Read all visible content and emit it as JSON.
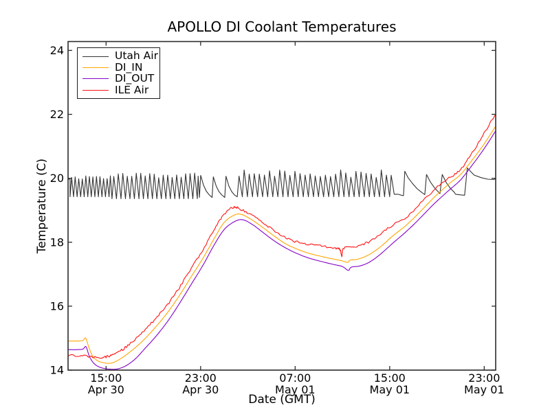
{
  "title": "APOLLO DI Coolant Temperatures",
  "chart_data": {
    "type": "line",
    "title": "APOLLO DI Coolant Temperatures",
    "xlabel": "Date (GMT)",
    "ylabel": "Temperature (C)",
    "x_unit": "hours since Apr 30 00:00 GMT",
    "xlim_hours": [
      11.783,
      47.97
    ],
    "ylim": [
      14,
      24.277
    ],
    "grid": false,
    "legend_position": "upper-left",
    "frame_color": "#2b2b2b",
    "x_ticks": [
      {
        "hour": 15,
        "time": "15:00",
        "date": "Apr 30"
      },
      {
        "hour": 23,
        "time": "23:00",
        "date": "Apr 30"
      },
      {
        "hour": 31,
        "time": "07:00",
        "date": "May 01"
      },
      {
        "hour": 39,
        "time": "15:00",
        "date": "May 01"
      },
      {
        "hour": 47,
        "time": "23:00",
        "date": "May 01"
      }
    ],
    "y_ticks": [
      14,
      16,
      18,
      20,
      22,
      24
    ],
    "series": [
      {
        "name": "Utah Air",
        "color": "#333333",
        "type": "sawtooth",
        "flat_start": [
          [
            11.783,
            19.97
          ],
          [
            11.95,
            19.97
          ]
        ],
        "teeth_segments": [
          {
            "t0": 11.95,
            "t1": 15.5,
            "period": 0.3,
            "lo": 19.42,
            "hi": 20.0,
            "rise_frac": 0.45,
            "peak_jitter": 0.06
          },
          {
            "t0": 15.5,
            "t1": 22.9,
            "period": 0.38,
            "lo": 19.36,
            "hi": 20.06,
            "rise_frac": 0.4,
            "peak_jitter": 0.08
          },
          {
            "t0": 22.9,
            "t1": 26.1,
            "period": 1.07,
            "lo": 19.4,
            "hi": 20.05,
            "rise_frac": 0.1,
            "peak_jitter": 0.05
          },
          {
            "t0": 26.1,
            "t1": 39.37,
            "period": 0.43,
            "lo": 19.42,
            "hi": 20.1,
            "rise_frac": 0.35,
            "peak_jitter": 0.12
          }
        ],
        "tail_points": [
          [
            39.38,
            19.5
          ],
          [
            39.7,
            19.5
          ],
          [
            40.1,
            19.46
          ],
          [
            40.17,
            19.46
          ],
          [
            40.28,
            20.22
          ],
          [
            40.55,
            20.02
          ],
          [
            40.9,
            19.85
          ],
          [
            41.3,
            19.68
          ],
          [
            41.7,
            19.56
          ],
          [
            41.97,
            19.49
          ],
          [
            42.12,
            20.12
          ],
          [
            42.45,
            19.88
          ],
          [
            42.8,
            19.7
          ],
          [
            43.1,
            19.58
          ],
          [
            43.25,
            19.52
          ],
          [
            43.45,
            20.12
          ],
          [
            43.8,
            19.86
          ],
          [
            44.15,
            19.68
          ],
          [
            44.45,
            19.57
          ],
          [
            44.58,
            19.5
          ],
          [
            45.0,
            19.48
          ],
          [
            45.34,
            19.47
          ],
          [
            45.57,
            20.32
          ],
          [
            46.15,
            20.1
          ],
          [
            46.73,
            20.02
          ],
          [
            47.31,
            19.97
          ],
          [
            47.78,
            19.96
          ],
          [
            47.97,
            19.98
          ]
        ]
      },
      {
        "name": "DI_IN",
        "color": "#ffa500",
        "type": "smooth",
        "noise": 0,
        "points": [
          [
            11.78,
            14.91
          ],
          [
            12.6,
            14.91
          ],
          [
            13.05,
            14.93
          ],
          [
            13.28,
            15.0
          ],
          [
            13.55,
            14.7
          ],
          [
            13.85,
            14.45
          ],
          [
            14.25,
            14.3
          ],
          [
            14.8,
            14.23
          ],
          [
            15.45,
            14.22
          ],
          [
            16.2,
            14.35
          ],
          [
            17.2,
            14.62
          ],
          [
            18.2,
            14.95
          ],
          [
            19.2,
            15.35
          ],
          [
            20.2,
            15.8
          ],
          [
            21.2,
            16.33
          ],
          [
            22.2,
            16.92
          ],
          [
            23.2,
            17.5
          ],
          [
            24.2,
            18.15
          ],
          [
            25.0,
            18.62
          ],
          [
            25.85,
            18.85
          ],
          [
            26.45,
            18.87
          ],
          [
            27.25,
            18.72
          ],
          [
            28.2,
            18.48
          ],
          [
            29.2,
            18.2
          ],
          [
            30.2,
            17.95
          ],
          [
            31.2,
            17.78
          ],
          [
            32.2,
            17.65
          ],
          [
            33.4,
            17.54
          ],
          [
            34.3,
            17.47
          ],
          [
            34.95,
            17.42
          ],
          [
            35.45,
            17.37
          ],
          [
            35.65,
            17.44
          ],
          [
            36.3,
            17.47
          ],
          [
            37.2,
            17.6
          ],
          [
            38.2,
            17.85
          ],
          [
            39.2,
            18.18
          ],
          [
            40.3,
            18.5
          ],
          [
            41.3,
            18.85
          ],
          [
            42.7,
            19.38
          ],
          [
            44.0,
            19.82
          ],
          [
            45.0,
            20.12
          ],
          [
            46.0,
            20.58
          ],
          [
            47.0,
            21.08
          ],
          [
            47.95,
            21.62
          ]
        ]
      },
      {
        "name": "DI_OUT",
        "color": "#8400c8",
        "type": "smooth",
        "noise": 0,
        "points": [
          [
            11.78,
            14.64
          ],
          [
            12.6,
            14.64
          ],
          [
            13.05,
            14.66
          ],
          [
            13.3,
            14.73
          ],
          [
            13.6,
            14.42
          ],
          [
            14.0,
            14.2
          ],
          [
            14.55,
            14.08
          ],
          [
            15.3,
            14.03
          ],
          [
            16.0,
            14.04
          ],
          [
            16.7,
            14.14
          ],
          [
            17.5,
            14.36
          ],
          [
            18.3,
            14.68
          ],
          [
            19.2,
            15.05
          ],
          [
            20.2,
            15.52
          ],
          [
            21.2,
            16.08
          ],
          [
            22.2,
            16.68
          ],
          [
            23.2,
            17.28
          ],
          [
            24.2,
            17.95
          ],
          [
            25.05,
            18.42
          ],
          [
            25.95,
            18.66
          ],
          [
            26.6,
            18.7
          ],
          [
            27.4,
            18.55
          ],
          [
            28.3,
            18.3
          ],
          [
            29.2,
            18.05
          ],
          [
            30.2,
            17.82
          ],
          [
            31.2,
            17.64
          ],
          [
            32.2,
            17.5
          ],
          [
            33.4,
            17.38
          ],
          [
            34.3,
            17.3
          ],
          [
            35.0,
            17.24
          ],
          [
            35.5,
            17.12
          ],
          [
            35.75,
            17.22
          ],
          [
            36.5,
            17.26
          ],
          [
            37.3,
            17.38
          ],
          [
            38.2,
            17.62
          ],
          [
            39.2,
            17.95
          ],
          [
            40.3,
            18.3
          ],
          [
            41.3,
            18.65
          ],
          [
            42.7,
            19.18
          ],
          [
            44.0,
            19.62
          ],
          [
            45.0,
            19.95
          ],
          [
            46.0,
            20.42
          ],
          [
            47.0,
            20.93
          ],
          [
            47.95,
            21.47
          ]
        ]
      },
      {
        "name": "ILE Air",
        "color": "#ff1212",
        "type": "smooth",
        "noise": 0.075,
        "points": [
          [
            11.78,
            14.46
          ],
          [
            12.8,
            14.45
          ],
          [
            13.6,
            14.42
          ],
          [
            14.3,
            14.38
          ],
          [
            15.0,
            14.42
          ],
          [
            15.6,
            14.48
          ],
          [
            16.3,
            14.62
          ],
          [
            17.2,
            14.88
          ],
          [
            18.2,
            15.22
          ],
          [
            19.2,
            15.62
          ],
          [
            20.2,
            16.05
          ],
          [
            21.2,
            16.58
          ],
          [
            22.2,
            17.18
          ],
          [
            23.2,
            17.75
          ],
          [
            24.2,
            18.42
          ],
          [
            25.0,
            18.88
          ],
          [
            25.7,
            19.08
          ],
          [
            26.3,
            19.05
          ],
          [
            27.2,
            18.88
          ],
          [
            28.2,
            18.62
          ],
          [
            29.2,
            18.37
          ],
          [
            30.2,
            18.15
          ],
          [
            31.2,
            18.0
          ],
          [
            32.2,
            17.92
          ],
          [
            33.4,
            17.87
          ],
          [
            34.4,
            17.8
          ],
          [
            34.78,
            17.79
          ],
          [
            34.95,
            17.56
          ],
          [
            35.12,
            17.82
          ],
          [
            36.2,
            17.88
          ],
          [
            37.2,
            18.0
          ],
          [
            38.2,
            18.25
          ],
          [
            39.2,
            18.52
          ],
          [
            40.3,
            18.75
          ],
          [
            41.3,
            19.1
          ],
          [
            42.7,
            19.62
          ],
          [
            44.0,
            20.0
          ],
          [
            45.0,
            20.28
          ],
          [
            46.0,
            20.8
          ],
          [
            47.0,
            21.42
          ],
          [
            47.95,
            22.0
          ]
        ]
      }
    ]
  }
}
